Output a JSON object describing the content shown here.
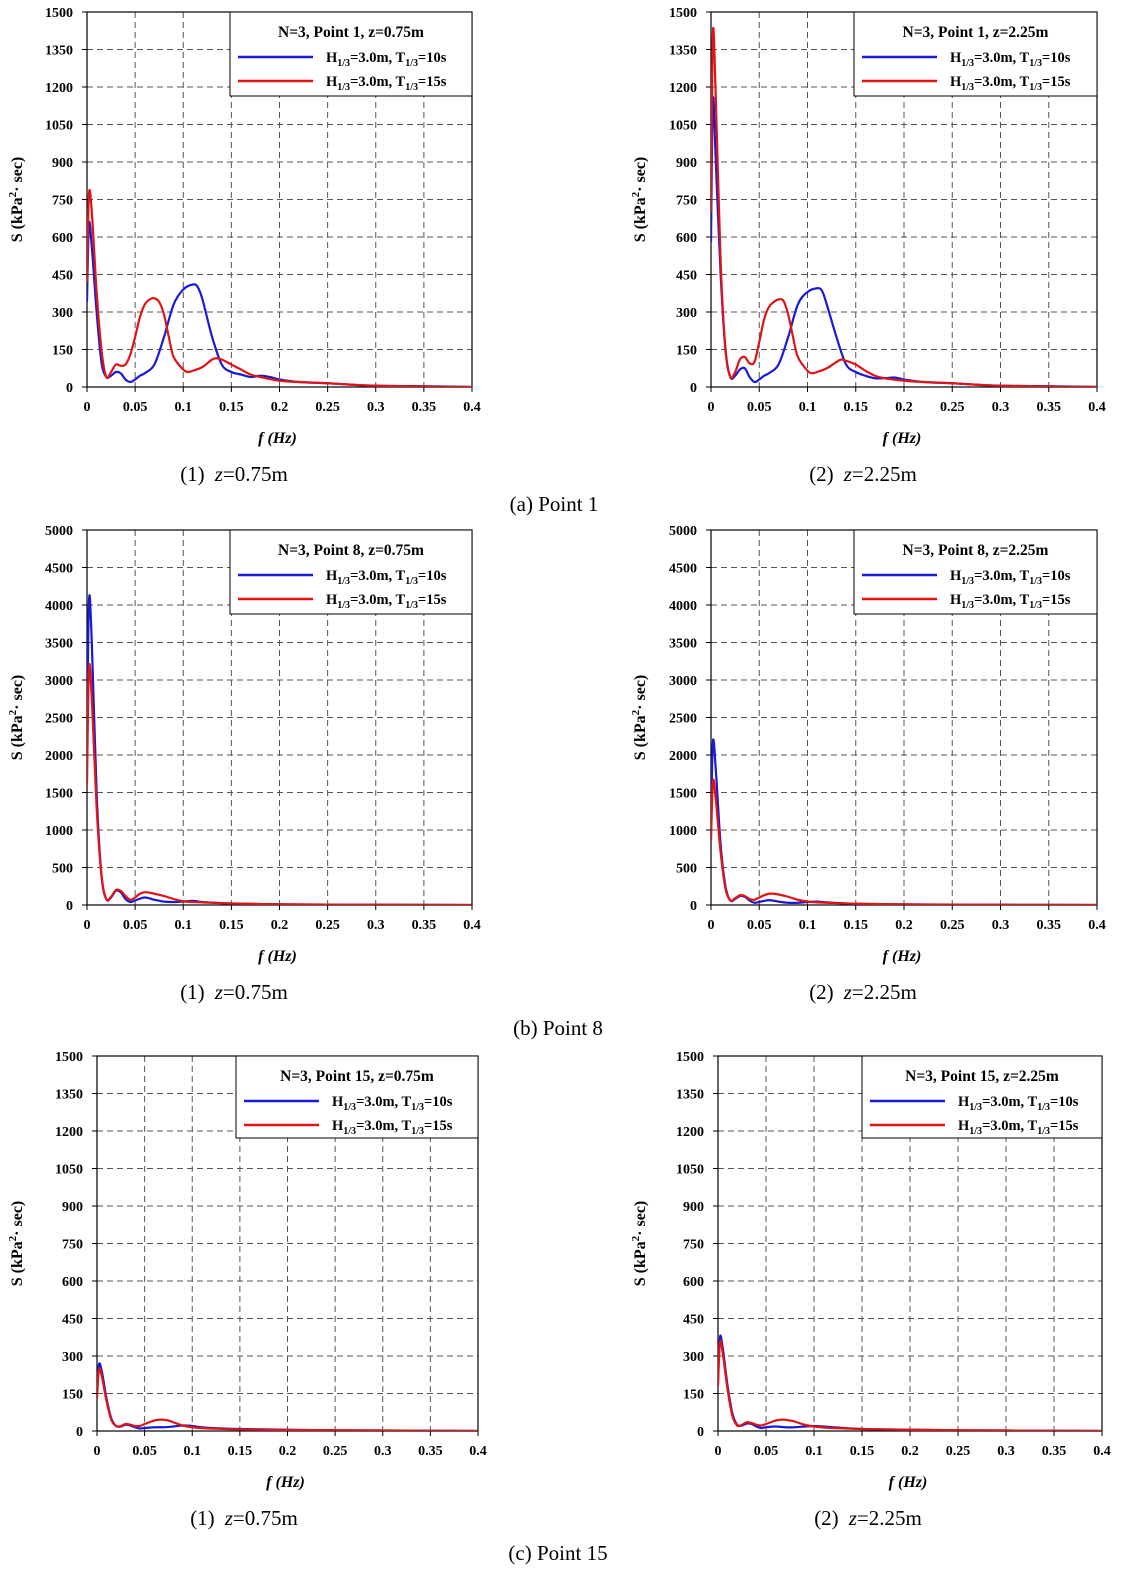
{
  "figure": {
    "panels": [
      {
        "caption": "(1)  z=0.75m",
        "caption_prefix": "(1)",
        "caption_z": "z",
        "caption_val": "=0.75m"
      },
      {
        "caption": "(2)  z=2.25m",
        "caption_prefix": "(2)",
        "caption_z": "z",
        "caption_val": "=2.25m"
      },
      {
        "caption": "(1)  z=0.75m",
        "caption_prefix": "(1)",
        "caption_z": "z",
        "caption_val": "=0.75m"
      },
      {
        "caption": "(2)  z=2.25m",
        "caption_prefix": "(2)",
        "caption_z": "z",
        "caption_val": "=2.25m"
      },
      {
        "caption": "(1)  z=0.75m",
        "caption_prefix": "(1)",
        "caption_z": "z",
        "caption_val": "=0.75m"
      },
      {
        "caption": "(2)  z=2.25m",
        "caption_prefix": "(2)",
        "caption_z": "z",
        "caption_val": "=2.25m"
      }
    ],
    "row_captions": [
      "(a)  Point  1",
      "(b)  Point  8",
      "(c)  Point  15"
    ],
    "colors": {
      "H10": "#1a1ad6",
      "H15": "#e01414",
      "grid": "#555555"
    }
  },
  "chart_data": [
    {
      "type": "line",
      "title": "N=3, Point 1, z=0.75m",
      "xlabel": "f (Hz)",
      "ylabel": "S (kPa²· sec)",
      "xlim": [
        0,
        0.4
      ],
      "ylim": [
        0,
        1500
      ],
      "xticks": [
        "0",
        "0.05",
        "0.1",
        "0.15",
        "0.2",
        "0.25",
        "0.3",
        "0.35",
        "0.4"
      ],
      "yticks": [
        "0",
        "150",
        "300",
        "450",
        "600",
        "750",
        "900",
        "1050",
        "1200",
        "1350",
        "1500"
      ],
      "grid": true,
      "legend_position": "top-right",
      "series": [
        {
          "name": "H1/3=3.0m, T1/3=10s",
          "color": "#1a1ad6",
          "x": [
            0,
            0.002,
            0.005,
            0.01,
            0.015,
            0.02,
            0.025,
            0.03,
            0.035,
            0.04,
            0.045,
            0.05,
            0.055,
            0.06,
            0.07,
            0.08,
            0.09,
            0.1,
            0.11,
            0.115,
            0.12,
            0.13,
            0.14,
            0.15,
            0.16,
            0.17,
            0.18,
            0.19,
            0.2,
            0.22,
            0.25,
            0.28,
            0.3,
            0.35,
            0.4
          ],
          "y": [
            340,
            650,
            560,
            300,
            100,
            40,
            45,
            60,
            55,
            30,
            20,
            30,
            45,
            55,
            90,
            200,
            330,
            390,
            410,
            400,
            350,
            200,
            90,
            60,
            50,
            40,
            45,
            40,
            30,
            20,
            15,
            8,
            5,
            3,
            0
          ]
        },
        {
          "name": "H1/3=3.0m, T1/3=15s",
          "color": "#e01414",
          "x": [
            0,
            0.002,
            0.005,
            0.01,
            0.015,
            0.02,
            0.025,
            0.03,
            0.035,
            0.04,
            0.045,
            0.05,
            0.055,
            0.06,
            0.065,
            0.07,
            0.075,
            0.08,
            0.085,
            0.09,
            0.1,
            0.105,
            0.11,
            0.12,
            0.13,
            0.135,
            0.14,
            0.15,
            0.16,
            0.17,
            0.18,
            0.2,
            0.22,
            0.25,
            0.28,
            0.3,
            0.35,
            0.4
          ],
          "y": [
            420,
            770,
            700,
            380,
            150,
            40,
            60,
            90,
            85,
            90,
            130,
            200,
            280,
            330,
            350,
            355,
            340,
            290,
            200,
            120,
            70,
            60,
            65,
            80,
            110,
            115,
            110,
            90,
            70,
            50,
            40,
            25,
            20,
            15,
            8,
            5,
            2,
            0
          ]
        }
      ]
    },
    {
      "type": "line",
      "title": "N=3, Point 1, z=2.25m",
      "xlabel": "f (Hz)",
      "ylabel": "S (kPa²· sec)",
      "xlim": [
        0,
        0.4
      ],
      "ylim": [
        0,
        1500
      ],
      "xticks": [
        "0",
        "0.05",
        "0.1",
        "0.15",
        "0.2",
        "0.25",
        "0.3",
        "0.35",
        "0.4"
      ],
      "yticks": [
        "0",
        "150",
        "300",
        "450",
        "600",
        "750",
        "900",
        "1050",
        "1200",
        "1350",
        "1500"
      ],
      "grid": true,
      "legend_position": "top-right",
      "series": [
        {
          "name": "H1/3=3.0m, T1/3=10s",
          "color": "#1a1ad6",
          "x": [
            0,
            0.002,
            0.005,
            0.01,
            0.015,
            0.02,
            0.025,
            0.03,
            0.035,
            0.04,
            0.045,
            0.05,
            0.055,
            0.06,
            0.07,
            0.08,
            0.09,
            0.1,
            0.11,
            0.115,
            0.12,
            0.13,
            0.14,
            0.15,
            0.16,
            0.17,
            0.18,
            0.19,
            0.2,
            0.22,
            0.25,
            0.28,
            0.3,
            0.35,
            0.4
          ],
          "y": [
            580,
            1150,
            900,
            450,
            150,
            40,
            45,
            70,
            75,
            40,
            20,
            30,
            45,
            55,
            90,
            200,
            330,
            380,
            395,
            385,
            330,
            200,
            90,
            60,
            45,
            35,
            35,
            38,
            30,
            20,
            15,
            8,
            5,
            3,
            0
          ]
        },
        {
          "name": "H1/3=3.0m, T1/3=15s",
          "color": "#e01414",
          "x": [
            0,
            0.002,
            0.005,
            0.01,
            0.015,
            0.02,
            0.025,
            0.03,
            0.035,
            0.04,
            0.045,
            0.05,
            0.055,
            0.06,
            0.065,
            0.07,
            0.075,
            0.08,
            0.085,
            0.09,
            0.1,
            0.105,
            0.11,
            0.12,
            0.13,
            0.135,
            0.14,
            0.15,
            0.16,
            0.17,
            0.18,
            0.2,
            0.22,
            0.25,
            0.28,
            0.3,
            0.35,
            0.4
          ],
          "y": [
            700,
            1420,
            1150,
            500,
            150,
            40,
            60,
            110,
            120,
            95,
            100,
            180,
            270,
            320,
            340,
            350,
            345,
            290,
            200,
            120,
            65,
            55,
            60,
            75,
            100,
            110,
            105,
            90,
            65,
            45,
            35,
            25,
            20,
            15,
            8,
            5,
            2,
            0
          ]
        }
      ]
    },
    {
      "type": "line",
      "title": "N=3, Point 8, z=0.75m",
      "xlabel": "f (Hz)",
      "ylabel": "S (kPa²· sec)",
      "xlim": [
        0,
        0.4
      ],
      "ylim": [
        0,
        5000
      ],
      "xticks": [
        "0",
        "0.05",
        "0.1",
        "0.15",
        "0.2",
        "0.25",
        "0.3",
        "0.35",
        "0.4"
      ],
      "yticks": [
        "0",
        "500",
        "1000",
        "1500",
        "2000",
        "2500",
        "3000",
        "3500",
        "4000",
        "4500",
        "5000"
      ],
      "grid": true,
      "legend_position": "top-right",
      "series": [
        {
          "name": "H1/3=3.0m, T1/3=10s",
          "color": "#1a1ad6",
          "x": [
            0,
            0.002,
            0.005,
            0.01,
            0.015,
            0.02,
            0.025,
            0.03,
            0.035,
            0.04,
            0.045,
            0.05,
            0.06,
            0.07,
            0.08,
            0.09,
            0.1,
            0.11,
            0.12,
            0.15,
            0.2,
            0.25,
            0.3,
            0.4
          ],
          "y": [
            2000,
            4050,
            3500,
            1500,
            400,
            80,
            100,
            190,
            170,
            80,
            40,
            60,
            100,
            70,
            45,
            40,
            45,
            55,
            40,
            20,
            10,
            5,
            3,
            0
          ]
        },
        {
          "name": "H1/3=3.0m, T1/3=15s",
          "color": "#e01414",
          "x": [
            0,
            0.002,
            0.005,
            0.01,
            0.015,
            0.02,
            0.025,
            0.03,
            0.035,
            0.04,
            0.045,
            0.05,
            0.055,
            0.06,
            0.065,
            0.07,
            0.08,
            0.09,
            0.1,
            0.11,
            0.12,
            0.15,
            0.2,
            0.25,
            0.3,
            0.4
          ],
          "y": [
            1600,
            3150,
            2750,
            1300,
            400,
            80,
            110,
            200,
            190,
            120,
            70,
            100,
            150,
            170,
            165,
            150,
            120,
            80,
            50,
            40,
            35,
            20,
            10,
            5,
            3,
            0
          ]
        }
      ]
    },
    {
      "type": "line",
      "title": "N=3, Point 8, z=2.25m",
      "xlabel": "f (Hz)",
      "ylabel": "S (kPa²· sec)",
      "xlim": [
        0,
        0.4
      ],
      "ylim": [
        0,
        5000
      ],
      "xticks": [
        "0",
        "0.05",
        "0.1",
        "0.15",
        "0.2",
        "0.25",
        "0.3",
        "0.35",
        "0.4"
      ],
      "yticks": [
        "0",
        "500",
        "1000",
        "1500",
        "2000",
        "2500",
        "3000",
        "3500",
        "4000",
        "4500",
        "5000"
      ],
      "grid": true,
      "legend_position": "top-right",
      "series": [
        {
          "name": "H1/3=3.0m, T1/3=10s",
          "color": "#1a1ad6",
          "x": [
            0,
            0.002,
            0.005,
            0.01,
            0.015,
            0.02,
            0.025,
            0.03,
            0.035,
            0.04,
            0.045,
            0.05,
            0.06,
            0.07,
            0.08,
            0.09,
            0.1,
            0.11,
            0.12,
            0.15,
            0.2,
            0.25,
            0.3,
            0.4
          ],
          "y": [
            1100,
            2180,
            1800,
            800,
            250,
            60,
            80,
            120,
            110,
            60,
            30,
            40,
            65,
            45,
            30,
            30,
            40,
            45,
            35,
            15,
            8,
            5,
            3,
            0
          ]
        },
        {
          "name": "H1/3=3.0m, T1/3=15s",
          "color": "#e01414",
          "x": [
            0,
            0.002,
            0.005,
            0.01,
            0.015,
            0.02,
            0.025,
            0.03,
            0.035,
            0.04,
            0.045,
            0.05,
            0.055,
            0.06,
            0.065,
            0.07,
            0.08,
            0.09,
            0.1,
            0.11,
            0.12,
            0.15,
            0.2,
            0.25,
            0.3,
            0.4
          ],
          "y": [
            850,
            1650,
            1400,
            700,
            220,
            60,
            90,
            130,
            120,
            80,
            70,
            100,
            130,
            150,
            150,
            140,
            110,
            70,
            45,
            35,
            30,
            18,
            8,
            5,
            3,
            0
          ]
        }
      ]
    },
    {
      "type": "line",
      "title": "N=3, Point 15, z=0.75m",
      "xlabel": "f (Hz)",
      "ylabel": "S (kPa²· sec)",
      "xlim": [
        0,
        0.4
      ],
      "ylim": [
        0,
        1500
      ],
      "xticks": [
        "0",
        "0.05",
        "0.1",
        "0.15",
        "0.2",
        "0.25",
        "0.3",
        "0.35",
        "0.4"
      ],
      "yticks": [
        "0",
        "150",
        "300",
        "450",
        "600",
        "750",
        "900",
        "1050",
        "1200",
        "1350",
        "1500"
      ],
      "grid": true,
      "legend_position": "top-right",
      "series": [
        {
          "name": "H1/3=3.0m, T1/3=10s",
          "color": "#1a1ad6",
          "x": [
            0,
            0.002,
            0.005,
            0.01,
            0.015,
            0.02,
            0.025,
            0.03,
            0.035,
            0.04,
            0.045,
            0.05,
            0.06,
            0.07,
            0.08,
            0.09,
            0.1,
            0.11,
            0.12,
            0.15,
            0.2,
            0.25,
            0.3,
            0.4
          ],
          "y": [
            150,
            265,
            240,
            130,
            50,
            20,
            18,
            25,
            22,
            15,
            10,
            12,
            15,
            15,
            18,
            22,
            20,
            15,
            12,
            8,
            5,
            3,
            2,
            0
          ]
        },
        {
          "name": "H1/3=3.0m, T1/3=15s",
          "color": "#e01414",
          "x": [
            0,
            0.002,
            0.005,
            0.01,
            0.015,
            0.02,
            0.025,
            0.03,
            0.035,
            0.04,
            0.045,
            0.05,
            0.055,
            0.06,
            0.065,
            0.07,
            0.075,
            0.08,
            0.09,
            0.1,
            0.11,
            0.12,
            0.15,
            0.2,
            0.25,
            0.3,
            0.4
          ],
          "y": [
            130,
            245,
            220,
            120,
            45,
            20,
            20,
            28,
            25,
            20,
            20,
            28,
            35,
            42,
            45,
            45,
            42,
            35,
            22,
            15,
            12,
            10,
            6,
            4,
            3,
            2,
            0
          ]
        }
      ]
    },
    {
      "type": "line",
      "title": "N=3, Point 15, z=2.25m",
      "xlabel": "f (Hz)",
      "ylabel": "S (kPa²· sec)",
      "xlim": [
        0,
        0.4
      ],
      "ylim": [
        0,
        1500
      ],
      "xticks": [
        "0",
        "0.05",
        "0.1",
        "0.15",
        "0.2",
        "0.25",
        "0.3",
        "0.35",
        "0.4"
      ],
      "yticks": [
        "0",
        "150",
        "300",
        "450",
        "600",
        "750",
        "900",
        "1050",
        "1200",
        "1350",
        "1500"
      ],
      "grid": true,
      "legend_position": "top-right",
      "series": [
        {
          "name": "H1/3=3.0m, T1/3=10s",
          "color": "#1a1ad6",
          "x": [
            0,
            0.002,
            0.005,
            0.01,
            0.015,
            0.02,
            0.025,
            0.03,
            0.035,
            0.04,
            0.045,
            0.05,
            0.06,
            0.07,
            0.08,
            0.09,
            0.1,
            0.11,
            0.12,
            0.15,
            0.2,
            0.25,
            0.3,
            0.4
          ],
          "y": [
            200,
            375,
            330,
            180,
            70,
            25,
            22,
            30,
            28,
            18,
            12,
            15,
            18,
            15,
            15,
            18,
            20,
            18,
            15,
            8,
            5,
            3,
            2,
            0
          ]
        },
        {
          "name": "H1/3=3.0m, T1/3=15s",
          "color": "#e01414",
          "x": [
            0,
            0.002,
            0.005,
            0.01,
            0.015,
            0.02,
            0.025,
            0.03,
            0.035,
            0.04,
            0.045,
            0.05,
            0.055,
            0.06,
            0.065,
            0.07,
            0.075,
            0.08,
            0.09,
            0.1,
            0.11,
            0.12,
            0.15,
            0.2,
            0.25,
            0.3,
            0.4
          ],
          "y": [
            180,
            355,
            310,
            165,
            60,
            22,
            25,
            35,
            32,
            25,
            22,
            28,
            35,
            42,
            45,
            45,
            42,
            38,
            25,
            18,
            14,
            12,
            8,
            5,
            3,
            2,
            0
          ]
        }
      ]
    }
  ]
}
